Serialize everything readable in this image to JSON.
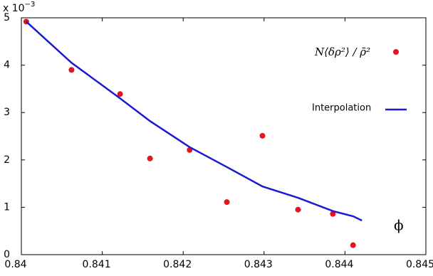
{
  "chart_data": {
    "type": "scatter",
    "multiplier": {
      "base": "x 10",
      "exponent": "−3"
    },
    "xlabel": "ϕ",
    "xlim": [
      0.84,
      0.845
    ],
    "xticks": [
      0.84,
      0.841,
      0.842,
      0.843,
      0.844,
      0.845
    ],
    "ylim": [
      0,
      5
    ],
    "yticks": [
      0,
      1,
      2,
      3,
      4,
      5
    ],
    "grid": false,
    "series": [
      {
        "name": "N⟨δρ²⟩ / ρ̄²",
        "kind": "scatter",
        "color": "#e8141c",
        "x": [
          0.84006,
          0.84062,
          0.84122,
          0.84159,
          0.84208,
          0.84254,
          0.84298,
          0.84342,
          0.84385,
          0.8441
        ],
        "values": [
          4.92,
          3.9,
          3.39,
          2.03,
          2.21,
          1.11,
          2.51,
          0.95,
          0.86,
          0.2
        ]
      },
      {
        "name": "Interpolation",
        "kind": "line",
        "color": "#1a1ad2",
        "x": [
          0.84006,
          0.84062,
          0.84122,
          0.84159,
          0.84208,
          0.84254,
          0.84298,
          0.84342,
          0.84385,
          0.8441,
          0.84421
        ],
        "values": [
          4.92,
          4.05,
          3.3,
          2.82,
          2.27,
          1.85,
          1.44,
          1.2,
          0.92,
          0.81,
          0.72
        ]
      }
    ]
  }
}
